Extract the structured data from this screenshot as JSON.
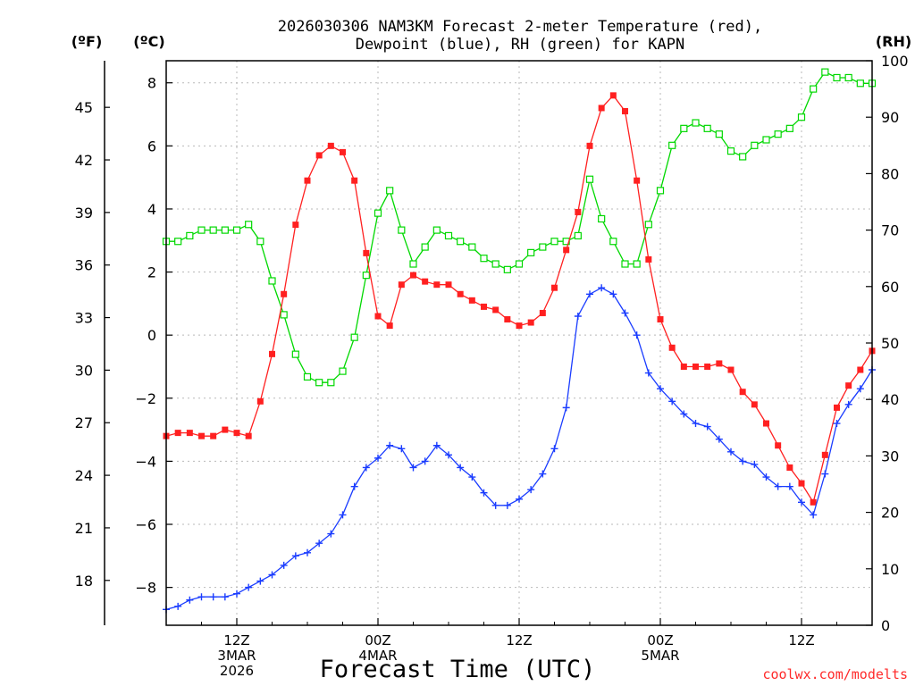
{
  "chart_data": {
    "type": "line",
    "title_line1": "2026030306 NAM3KM Forecast 2-meter Temperature (red),",
    "title_line2": "Dewpoint (blue), RH (green) for KAPN",
    "xlabel": "Forecast Time (UTC)",
    "credit": "coolwx.com/modelts",
    "left_outer_axis": {
      "unit": "(ºF)",
      "ticks": [
        18,
        21,
        24,
        27,
        30,
        33,
        36,
        39,
        42,
        45
      ]
    },
    "left_axis": {
      "unit": "(ºC)",
      "ylim": [
        -9.2,
        8.7
      ],
      "ticks": [
        -8,
        -6,
        -4,
        -2,
        0,
        2,
        4,
        6,
        8
      ],
      "tick_labels": [
        "−8",
        "−6",
        "−4",
        "−2",
        "0",
        "2",
        "4",
        "6",
        "8"
      ]
    },
    "right_axis": {
      "unit": "(RH)",
      "ylim": [
        0,
        100
      ],
      "ticks": [
        0,
        10,
        20,
        30,
        40,
        50,
        60,
        70,
        80,
        90,
        100
      ]
    },
    "x_axis": {
      "units": "forecast hour",
      "xlim": [
        0,
        60
      ],
      "ticks": [
        {
          "hour": 6,
          "lines": [
            "12Z",
            "3MAR",
            "2026"
          ]
        },
        {
          "hour": 18,
          "lines": [
            "00Z",
            "4MAR"
          ]
        },
        {
          "hour": 30,
          "lines": [
            "12Z"
          ]
        },
        {
          "hour": 42,
          "lines": [
            "00Z",
            "5MAR"
          ]
        },
        {
          "hour": 54,
          "lines": [
            "12Z"
          ]
        }
      ]
    },
    "grid": true,
    "hours": [
      0,
      1,
      2,
      3,
      4,
      5,
      6,
      7,
      8,
      9,
      10,
      11,
      12,
      13,
      14,
      15,
      16,
      17,
      18,
      19,
      20,
      21,
      22,
      23,
      24,
      25,
      26,
      27,
      28,
      29,
      30,
      31,
      32,
      33,
      34,
      35,
      36,
      37,
      38,
      39,
      40,
      41,
      42,
      43,
      44,
      45,
      46,
      47,
      48,
      49,
      50,
      51,
      52,
      53,
      54,
      55,
      56,
      57,
      58,
      59,
      60
    ],
    "series": [
      {
        "name": "2-meter Temperature",
        "color": "#ff2020",
        "axis": "celsius",
        "marker": "filled-square",
        "values": [
          -3.2,
          -3.1,
          -3.1,
          -3.2,
          -3.2,
          -3.0,
          -3.1,
          -3.2,
          -2.1,
          -0.6,
          1.3,
          3.5,
          4.9,
          5.7,
          6.0,
          5.8,
          4.9,
          2.6,
          0.6,
          0.3,
          1.6,
          1.9,
          1.7,
          1.6,
          1.6,
          1.3,
          1.1,
          0.9,
          0.8,
          0.5,
          0.3,
          0.4,
          0.7,
          1.5,
          2.7,
          3.9,
          6.0,
          7.2,
          7.6,
          7.1,
          4.9,
          2.4,
          0.5,
          -0.4,
          -1.0,
          -1.0,
          -1.0,
          -0.9,
          -1.1,
          -1.8,
          -2.2,
          -2.8,
          -3.5,
          -4.2,
          -4.7,
          -5.3,
          -3.8,
          -2.3,
          -1.6,
          -1.1,
          -0.5
        ]
      },
      {
        "name": "Dewpoint",
        "color": "#1a3cff",
        "axis": "celsius",
        "marker": "plus",
        "values": [
          -8.7,
          -8.6,
          -8.4,
          -8.3,
          -8.3,
          -8.3,
          -8.2,
          -8.0,
          -7.8,
          -7.6,
          -7.3,
          -7.0,
          -6.9,
          -6.6,
          -6.3,
          -5.7,
          -4.8,
          -4.2,
          -3.9,
          -3.5,
          -3.6,
          -4.2,
          -4.0,
          -3.5,
          -3.8,
          -4.2,
          -4.5,
          -5.0,
          -5.4,
          -5.4,
          -5.2,
          -4.9,
          -4.4,
          -3.6,
          -2.3,
          0.6,
          1.3,
          1.5,
          1.3,
          0.7,
          0.0,
          -1.2,
          -1.7,
          -2.1,
          -2.5,
          -2.8,
          -2.9,
          -3.3,
          -3.7,
          -4.0,
          -4.1,
          -4.5,
          -4.8,
          -4.8,
          -5.3,
          -5.7,
          -4.4,
          -2.8,
          -2.2,
          -1.7,
          -1.1
        ]
      },
      {
        "name": "Relative Humidity",
        "color": "#00d800",
        "axis": "rh",
        "marker": "open-square",
        "values": [
          68,
          68,
          69,
          70,
          70,
          70,
          70,
          71,
          68,
          61,
          55,
          48,
          44,
          43,
          43,
          45,
          51,
          62,
          73,
          77,
          70,
          64,
          67,
          70,
          69,
          68,
          67,
          65,
          64,
          63,
          64,
          66,
          67,
          68,
          68,
          69,
          79,
          72,
          68,
          64,
          64,
          71,
          77,
          85,
          88,
          89,
          88,
          87,
          84,
          83,
          85,
          86,
          87,
          88,
          90,
          95,
          98,
          97,
          97,
          96,
          96
        ]
      }
    ]
  }
}
